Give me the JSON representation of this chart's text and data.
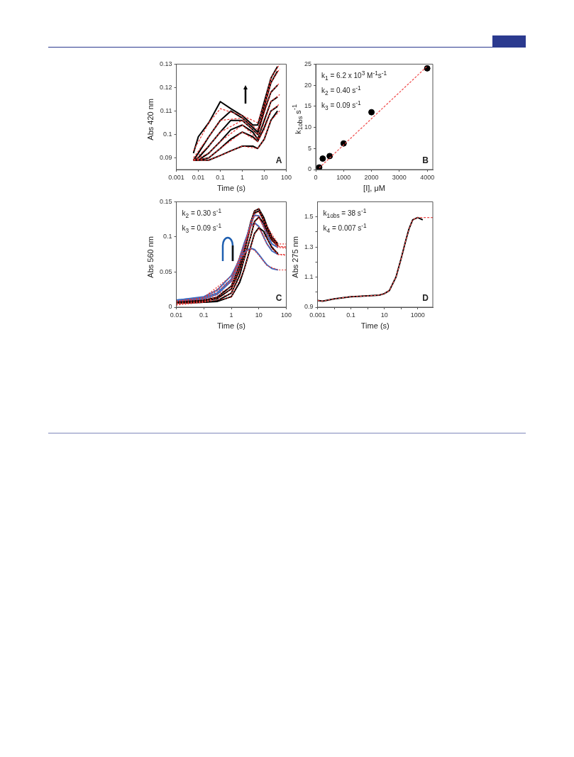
{
  "chart_data": [
    {
      "type": "line",
      "xlabel": "Time (s)",
      "ylabel": "Abs 420 nm",
      "log": "x",
      "xlim": [
        0.001,
        100
      ],
      "ylim": [
        0.085,
        0.13
      ],
      "xticks": [
        0.001,
        0.01,
        0.1,
        1,
        10,
        100
      ],
      "yticks": [
        0.09,
        0.1,
        0.11,
        0.12,
        0.13
      ],
      "annotations": [
        "A"
      ],
      "x": [
        0.006,
        0.01,
        0.03,
        0.1,
        0.3,
        1,
        3,
        5,
        10,
        20,
        40
      ],
      "series": [
        {
          "color": "#000000",
          "values": [
            0.092,
            0.099,
            0.105,
            0.114,
            0.111,
            0.108,
            0.104,
            0.104,
            0.114,
            0.124,
            0.129
          ]
        },
        {
          "color": "#000000",
          "values": [
            0.089,
            0.092,
            0.099,
            0.106,
            0.11,
            0.107,
            0.103,
            0.101,
            0.112,
            0.122,
            0.127
          ]
        },
        {
          "color": "#000000",
          "values": [
            0.089,
            0.09,
            0.095,
            0.101,
            0.106,
            0.106,
            0.102,
            0.1,
            0.11,
            0.118,
            0.121
          ]
        },
        {
          "color": "#000000",
          "values": [
            0.089,
            0.089,
            0.092,
            0.097,
            0.102,
            0.104,
            0.101,
            0.098,
            0.106,
            0.114,
            0.116
          ]
        },
        {
          "color": "#000000",
          "values": [
            0.089,
            0.089,
            0.09,
            0.094,
            0.098,
            0.101,
            0.099,
            0.097,
            0.103,
            0.11,
            0.112
          ]
        },
        {
          "color": "#000000",
          "values": [
            0.089,
            0.089,
            0.089,
            0.091,
            0.093,
            0.095,
            0.095,
            0.094,
            0.098,
            0.106,
            0.11
          ]
        },
        {
          "color": "#e8312f",
          "line_style": "dashed",
          "x": [
            0.006,
            0.03,
            0.1,
            1,
            5,
            10,
            20,
            50
          ],
          "values": [
            0.093,
            0.105,
            0.111,
            0.108,
            0.105,
            0.113,
            0.124,
            0.13
          ]
        },
        {
          "color": "#e8312f",
          "line_style": "dashed",
          "x": [
            0.006,
            0.03,
            0.1,
            1,
            5,
            10,
            20,
            50
          ],
          "values": [
            0.09,
            0.099,
            0.106,
            0.107,
            0.102,
            0.111,
            0.122,
            0.128
          ]
        },
        {
          "color": "#e8312f",
          "line_style": "dashed",
          "x": [
            0.006,
            0.03,
            0.1,
            1,
            5,
            10,
            20,
            50
          ],
          "values": [
            0.089,
            0.095,
            0.101,
            0.106,
            0.1,
            0.109,
            0.118,
            0.122
          ]
        },
        {
          "color": "#e8312f",
          "line_style": "dashed",
          "x": [
            0.006,
            0.03,
            0.1,
            1,
            5,
            10,
            20,
            50
          ],
          "values": [
            0.089,
            0.092,
            0.097,
            0.104,
            0.098,
            0.105,
            0.114,
            0.117
          ]
        },
        {
          "color": "#e8312f",
          "line_style": "dashed",
          "x": [
            0.006,
            0.03,
            0.1,
            1,
            5,
            10,
            20,
            50
          ],
          "values": [
            0.089,
            0.09,
            0.094,
            0.101,
            0.097,
            0.102,
            0.11,
            0.113
          ]
        },
        {
          "color": "#e8312f",
          "line_style": "dashed",
          "x": [
            0.006,
            0.03,
            0.1,
            1,
            5,
            10,
            20,
            50
          ],
          "values": [
            0.089,
            0.089,
            0.091,
            0.095,
            0.094,
            0.098,
            0.106,
            0.11
          ]
        }
      ]
    },
    {
      "type": "scatter",
      "xlabel": "[I], μM",
      "ylabel": "k$_{1obs}$ s$^{-1}$",
      "xlim": [
        0,
        4200
      ],
      "ylim": [
        0,
        25
      ],
      "xticks": [
        0,
        1000,
        2000,
        3000,
        4000
      ],
      "yticks": [
        0,
        5,
        10,
        15,
        20,
        25
      ],
      "annotations": [
        "k$_{1}$ = 6.2 x 10$^{3}$ M$^{-1}$s$^{-1}$",
        "k$_{2}$ = 0.40 s$^{-1}$",
        "k$_{3}$ = 0.09 s$^{-1}$",
        "B"
      ],
      "series": [
        {
          "color": "#000000",
          "marker": "circle",
          "x": [
            125,
            250,
            500,
            1000,
            2000,
            4000
          ],
          "values": [
            0.5,
            2.6,
            3.2,
            6.2,
            13.6,
            24
          ]
        },
        {
          "type": "line",
          "color": "#f04a4a",
          "line_style": "dashed",
          "x": [
            125,
            4000
          ],
          "values": [
            0.4,
            24.5
          ]
        }
      ]
    },
    {
      "type": "line",
      "xlabel": "Time (s)",
      "ylabel": "Abs 560 nm",
      "log": "x",
      "xlim": [
        0.01,
        100
      ],
      "ylim": [
        0,
        0.15
      ],
      "xticks": [
        0.01,
        0.1,
        1,
        10,
        100
      ],
      "yticks": [
        0,
        0.05,
        0.1,
        0.15
      ],
      "annotations": [
        "k$_{2}$ = 0.30 s$^{-1}$",
        "k$_{3}$ = 0.09 s$^{-1}$",
        "C"
      ],
      "x": [
        0.01,
        0.1,
        0.3,
        1,
        2,
        3,
        5,
        7,
        10,
        15,
        20,
        30,
        50
      ],
      "series": [
        {
          "color": "#000000",
          "values": [
            0.008,
            0.01,
            0.014,
            0.03,
            0.06,
            0.085,
            0.12,
            0.137,
            0.14,
            0.128,
            0.115,
            0.1,
            0.09
          ]
        },
        {
          "color": "#000000",
          "values": [
            0.007,
            0.009,
            0.012,
            0.026,
            0.053,
            0.078,
            0.115,
            0.134,
            0.137,
            0.124,
            0.112,
            0.098,
            0.088
          ]
        },
        {
          "color": "#3b6fc5",
          "values": [
            0.009,
            0.012,
            0.018,
            0.037,
            0.065,
            0.088,
            0.118,
            0.131,
            0.13,
            0.115,
            0.103,
            0.09,
            0.085
          ]
        },
        {
          "color": "#3b6fc5",
          "values": [
            0.01,
            0.014,
            0.02,
            0.04,
            0.07,
            0.092,
            0.115,
            0.12,
            0.115,
            0.1,
            0.09,
            0.08,
            0.075
          ]
        },
        {
          "color": "#000000",
          "values": [
            0.006,
            0.007,
            0.009,
            0.02,
            0.045,
            0.07,
            0.1,
            0.122,
            0.128,
            0.12,
            0.108,
            0.095,
            0.087
          ]
        },
        {
          "color": "#000000",
          "values": [
            0.006,
            0.007,
            0.008,
            0.015,
            0.035,
            0.055,
            0.085,
            0.105,
            0.113,
            0.108,
            0.098,
            0.085,
            0.076
          ]
        },
        {
          "color": "#3b6fc5",
          "values": [
            0.01,
            0.015,
            0.024,
            0.045,
            0.068,
            0.078,
            0.084,
            0.082,
            0.075,
            0.066,
            0.06,
            0.055,
            0.053
          ]
        },
        {
          "color": "#e8312f",
          "line_style": "dotted",
          "x": [
            0.01,
            0.1,
            1,
            3,
            5,
            7,
            10,
            20,
            50,
            100
          ],
          "values": [
            0.006,
            0.009,
            0.029,
            0.084,
            0.12,
            0.137,
            0.14,
            0.115,
            0.09,
            0.09
          ]
        },
        {
          "color": "#e8312f",
          "line_style": "dotted",
          "x": [
            0.01,
            0.1,
            1,
            3,
            5,
            7,
            10,
            20,
            50,
            100
          ],
          "values": [
            0.003,
            0.007,
            0.025,
            0.077,
            0.114,
            0.133,
            0.136,
            0.111,
            0.087,
            0.085
          ]
        },
        {
          "color": "#e8312f",
          "line_style": "dotted",
          "x": [
            0.01,
            0.1,
            1,
            3,
            5,
            7,
            10,
            20,
            50,
            100
          ],
          "values": [
            0.008,
            0.011,
            0.036,
            0.087,
            0.117,
            0.13,
            0.129,
            0.102,
            0.085,
            0.084
          ]
        },
        {
          "color": "#e8312f",
          "line_style": "dotted",
          "x": [
            0.01,
            0.1,
            1,
            3,
            5,
            7,
            10,
            20,
            50,
            100
          ],
          "values": [
            0.009,
            0.013,
            0.039,
            0.091,
            0.114,
            0.119,
            0.114,
            0.089,
            0.075,
            0.074
          ]
        },
        {
          "color": "#e8312f",
          "line_style": "dotted",
          "x": [
            0.01,
            0.1,
            1,
            3,
            5,
            7,
            10,
            20,
            50,
            100
          ],
          "values": [
            0.004,
            0.008,
            0.019,
            0.069,
            0.099,
            0.121,
            0.127,
            0.107,
            0.086,
            0.086
          ]
        },
        {
          "color": "#e8312f",
          "line_style": "dotted",
          "x": [
            0.01,
            0.1,
            1,
            3,
            5,
            7,
            10,
            20,
            50,
            100
          ],
          "values": [
            0.005,
            0.007,
            0.014,
            0.054,
            0.084,
            0.104,
            0.112,
            0.097,
            0.075,
            0.075
          ]
        },
        {
          "color": "#e8312f",
          "line_style": "dotted",
          "x": [
            0.01,
            0.1,
            1,
            3,
            5,
            7,
            10,
            20,
            50,
            100
          ],
          "values": [
            0.008,
            0.014,
            0.044,
            0.077,
            0.083,
            0.081,
            0.074,
            0.059,
            0.053,
            0.053
          ]
        }
      ]
    },
    {
      "type": "line",
      "xlabel": "Time (s)",
      "ylabel": "Abs 275 nm",
      "log": "x",
      "xlim": [
        0.001,
        8000
      ],
      "ylim": [
        0.9,
        1.6
      ],
      "xticks": [
        0.001,
        {
          "value": 0.01,
          "label": null
        },
        0.1,
        {
          "value": 1,
          "label": null
        },
        10,
        {
          "value": 100,
          "label": null
        },
        1000
      ],
      "yticks": [
        0.9,
        {
          "value": 1,
          "label": null
        },
        1.1,
        {
          "value": 1.2,
          "label": null
        },
        1.3,
        {
          "value": 1.4,
          "label": null
        },
        1.5
      ],
      "annotations": [
        "k$_{1obs}$ = 38 s$^{-1}$",
        "k$_{4}$ = 0.007 s$^{-1}$",
        "D"
      ],
      "series": [
        {
          "color": "#000000",
          "x": [
            0.001,
            0.002,
            0.01,
            0.1,
            1,
            5,
            10,
            20,
            50,
            100,
            200,
            300,
            500,
            1000,
            2000
          ],
          "values": [
            0.945,
            0.94,
            0.955,
            0.97,
            0.975,
            0.98,
            0.99,
            1.01,
            1.1,
            1.22,
            1.35,
            1.42,
            1.48,
            1.495,
            1.48
          ]
        },
        {
          "color": "#f04a4a",
          "line_style": "dashed",
          "x": [
            0.001,
            0.002,
            0.01,
            0.1,
            1,
            5,
            10,
            20,
            50,
            100,
            200,
            300,
            500,
            1000,
            2000,
            8000
          ],
          "values": [
            0.945,
            0.94,
            0.955,
            0.97,
            0.975,
            0.98,
            0.99,
            1.01,
            1.1,
            1.22,
            1.35,
            1.42,
            1.48,
            1.495,
            1.495,
            1.495
          ]
        }
      ]
    }
  ]
}
